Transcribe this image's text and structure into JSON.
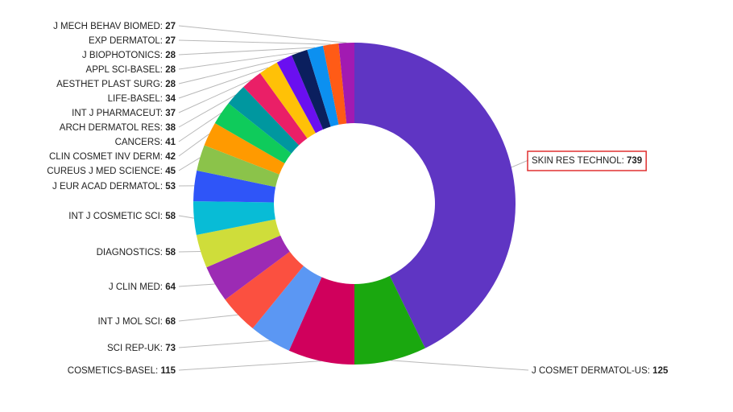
{
  "chart_data": {
    "type": "pie",
    "variant": "donut",
    "highlighted": "SKIN RES TECHNOL",
    "slices": [
      {
        "label": "SKIN RES TECHNOL",
        "value": 739,
        "color": "#5f35c3"
      },
      {
        "label": "J COSMET DERMATOL-US",
        "value": 125,
        "color": "#1aa80f"
      },
      {
        "label": "COSMETICS-BASEL",
        "value": 115,
        "color": "#d0005c"
      },
      {
        "label": "SCI REP-UK",
        "value": 73,
        "color": "#5b97f3"
      },
      {
        "label": "INT J MOL SCI",
        "value": 68,
        "color": "#fb5040"
      },
      {
        "label": "J CLIN MED",
        "value": 64,
        "color": "#9c2bb4"
      },
      {
        "label": "DIAGNOSTICS",
        "value": 58,
        "color": "#cfdd3a"
      },
      {
        "label": "INT J COSMETIC SCI",
        "value": 58,
        "color": "#08bcd6"
      },
      {
        "label": "J EUR ACAD DERMATOL",
        "value": 53,
        "color": "#2f55f8"
      },
      {
        "label": "CUREUS J MED SCIENCE",
        "value": 45,
        "color": "#8bc34a"
      },
      {
        "label": "CLIN COSMET INV DERM",
        "value": 42,
        "color": "#ff9a00"
      },
      {
        "label": "CANCERS",
        "value": 41,
        "color": "#0fcb5b"
      },
      {
        "label": "ARCH DERMATOL RES",
        "value": 38,
        "color": "#00979f"
      },
      {
        "label": "INT J PHARMACEUT",
        "value": 37,
        "color": "#ea1f67"
      },
      {
        "label": "LIFE-BASEL",
        "value": 34,
        "color": "#ffc107"
      },
      {
        "label": "AESTHET PLAST SURG",
        "value": 28,
        "color": "#6a0ff0"
      },
      {
        "label": "APPL SCI-BASEL",
        "value": 28,
        "color": "#0b1f5e"
      },
      {
        "label": "J BIOPHOTONICS",
        "value": 28,
        "color": "#0c90f0"
      },
      {
        "label": "EXP DERMATOL",
        "value": 27,
        "color": "#ff5b16"
      },
      {
        "label": "J MECH BEHAV BIOMED",
        "value": 27,
        "color": "#a21ab2"
      }
    ]
  }
}
